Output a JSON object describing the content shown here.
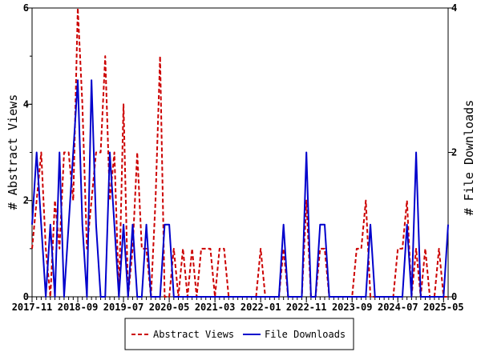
{
  "chart_data": {
    "type": "line",
    "x_tick_labels": [
      "2017-11",
      "2018-09",
      "2019-07",
      "2020-05",
      "2021-03",
      "2022-01",
      "2022-11",
      "2023-09",
      "2024-07",
      "2025-05"
    ],
    "y_left": {
      "label": "# Abstract Views",
      "ticks": [
        "0",
        "2",
        "4",
        "6"
      ],
      "ylim": [
        0,
        6
      ]
    },
    "y_right": {
      "label": "# File Downloads",
      "ticks": [
        "0",
        "2",
        "4"
      ],
      "ylim": [
        0,
        4
      ]
    },
    "grid": false,
    "legend_position": "bottom",
    "series": [
      {
        "name": "Abstract Views",
        "axis": "left",
        "color": "#cc0000",
        "style": "dashed",
        "x": [
          "2017-11",
          "2017-12",
          "2018-01",
          "2018-02",
          "2018-03",
          "2018-04",
          "2018-05",
          "2018-06",
          "2018-07",
          "2018-08",
          "2018-09",
          "2018-10",
          "2018-11",
          "2018-12",
          "2019-01",
          "2019-02",
          "2019-03",
          "2019-04",
          "2019-05",
          "2019-06",
          "2019-07",
          "2019-08",
          "2019-09",
          "2019-10",
          "2019-11",
          "2019-12",
          "2020-01",
          "2020-02",
          "2020-03",
          "2020-04",
          "2020-05",
          "2020-06",
          "2020-07",
          "2020-08",
          "2020-09",
          "2020-10",
          "2020-11",
          "2020-12",
          "2021-01",
          "2021-02",
          "2021-03",
          "2021-04",
          "2021-05",
          "2021-06",
          "2021-07",
          "2021-08",
          "2021-09",
          "2021-10",
          "2021-11",
          "2021-12",
          "2022-01",
          "2022-02",
          "2022-03",
          "2022-04",
          "2022-05",
          "2022-06",
          "2022-07",
          "2022-08",
          "2022-09",
          "2022-10",
          "2022-11",
          "2022-12",
          "2023-01",
          "2023-02",
          "2023-03",
          "2023-04",
          "2023-05",
          "2023-06",
          "2023-07",
          "2023-08",
          "2023-09",
          "2023-10",
          "2023-11",
          "2023-12",
          "2024-01",
          "2024-02",
          "2024-03",
          "2024-04",
          "2024-05",
          "2024-06",
          "2024-07",
          "2024-08",
          "2024-09",
          "2024-10",
          "2024-11",
          "2024-12",
          "2025-01",
          "2025-02",
          "2025-03",
          "2025-04",
          "2025-05",
          "2025-06"
        ],
        "values": [
          1,
          2,
          3,
          1,
          0,
          2,
          1,
          3,
          3,
          2,
          6,
          4,
          1,
          2,
          3,
          3,
          5,
          2,
          3,
          0,
          4,
          0,
          1,
          3,
          1,
          1,
          0,
          2,
          5,
          0,
          0,
          1,
          0,
          1,
          0,
          1,
          0,
          1,
          1,
          1,
          0,
          1,
          1,
          0,
          0,
          0,
          0,
          0,
          0,
          0,
          1,
          0,
          0,
          0,
          0,
          1,
          0,
          0,
          0,
          0,
          2,
          0,
          0,
          1,
          1,
          0,
          0,
          0,
          0,
          0,
          0,
          1,
          1,
          2,
          0,
          0,
          0,
          0,
          0,
          0,
          1,
          1,
          2,
          0,
          1,
          0,
          1,
          0,
          0,
          1,
          0,
          0
        ]
      },
      {
        "name": "File Downloads",
        "axis": "right",
        "color": "#0000cc",
        "style": "solid",
        "x": [
          "2017-11",
          "2017-12",
          "2018-01",
          "2018-02",
          "2018-03",
          "2018-04",
          "2018-05",
          "2018-06",
          "2018-07",
          "2018-08",
          "2018-09",
          "2018-10",
          "2018-11",
          "2018-12",
          "2019-01",
          "2019-02",
          "2019-03",
          "2019-04",
          "2019-05",
          "2019-06",
          "2019-07",
          "2019-08",
          "2019-09",
          "2019-10",
          "2019-11",
          "2019-12",
          "2020-01",
          "2020-02",
          "2020-03",
          "2020-04",
          "2020-05",
          "2020-06",
          "2020-07",
          "2020-08",
          "2020-09",
          "2020-10",
          "2020-11",
          "2020-12",
          "2021-01",
          "2021-02",
          "2021-03",
          "2021-04",
          "2021-05",
          "2021-06",
          "2021-07",
          "2021-08",
          "2021-09",
          "2021-10",
          "2021-11",
          "2021-12",
          "2022-01",
          "2022-02",
          "2022-03",
          "2022-04",
          "2022-05",
          "2022-06",
          "2022-07",
          "2022-08",
          "2022-09",
          "2022-10",
          "2022-11",
          "2022-12",
          "2023-01",
          "2023-02",
          "2023-03",
          "2023-04",
          "2023-05",
          "2023-06",
          "2023-07",
          "2023-08",
          "2023-09",
          "2023-10",
          "2023-11",
          "2023-12",
          "2024-01",
          "2024-02",
          "2024-03",
          "2024-04",
          "2024-05",
          "2024-06",
          "2024-07",
          "2024-08",
          "2024-09",
          "2024-10",
          "2024-11",
          "2024-12",
          "2025-01",
          "2025-02",
          "2025-03",
          "2025-04",
          "2025-05",
          "2025-06"
        ],
        "values": [
          1,
          2,
          1,
          0,
          1,
          0,
          2,
          0,
          1,
          2,
          3,
          1,
          0,
          3,
          1,
          0,
          0,
          2,
          1,
          0,
          1,
          0,
          1,
          0,
          0,
          1,
          0,
          0,
          0,
          1,
          1,
          0,
          0,
          0,
          0,
          0,
          0,
          0,
          0,
          0,
          0,
          0,
          0,
          0,
          0,
          0,
          0,
          0,
          0,
          0,
          0,
          0,
          0,
          0,
          0,
          1,
          0,
          0,
          0,
          0,
          2,
          0,
          0,
          1,
          1,
          0,
          0,
          0,
          0,
          0,
          0,
          0,
          0,
          0,
          1,
          0,
          0,
          0,
          0,
          0,
          0,
          0,
          1,
          0,
          2,
          0,
          0,
          0,
          0,
          0,
          0,
          1
        ]
      }
    ]
  }
}
